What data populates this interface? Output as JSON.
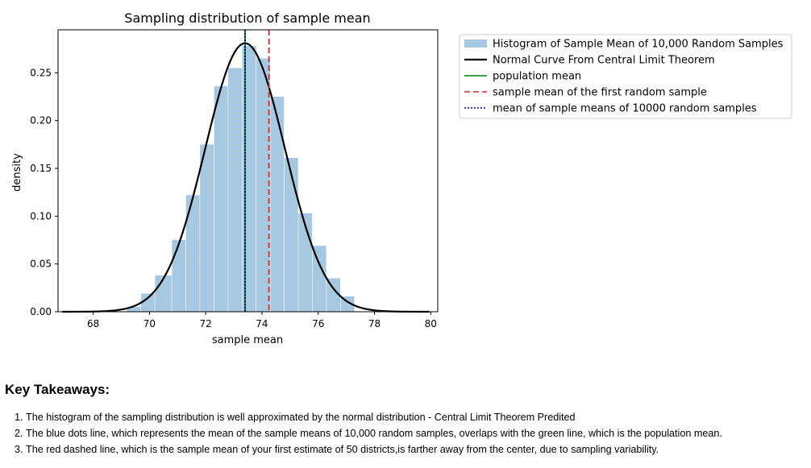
{
  "chart_data": {
    "type": "bar",
    "title": "Sampling distribution of sample mean",
    "xlabel": "sample mean",
    "ylabel": "density",
    "xlim": [
      66.75,
      80.25
    ],
    "ylim": [
      0,
      0.295
    ],
    "xticks": [
      68,
      70,
      72,
      74,
      76,
      78,
      80
    ],
    "yticks": [
      0.0,
      0.05,
      0.1,
      0.15,
      0.2,
      0.25
    ],
    "ytick_labels": [
      "0.00",
      "0.05",
      "0.10",
      "0.15",
      "0.20",
      "0.25"
    ],
    "grid": false,
    "legend_position": "outside-top-right",
    "histogram": {
      "name": "Histogram of Sample Mean of 10,000 Random Samples",
      "color": "#a6c8e0",
      "bin_edges": [
        69.2,
        69.7,
        70.2,
        70.8,
        71.3,
        71.8,
        72.3,
        72.8,
        73.3,
        73.8,
        74.3,
        74.8,
        75.3,
        75.8,
        76.3,
        76.8,
        77.3
      ],
      "density": [
        0.005,
        0.019,
        0.038,
        0.075,
        0.122,
        0.175,
        0.236,
        0.255,
        0.278,
        0.265,
        0.225,
        0.161,
        0.103,
        0.069,
        0.035,
        0.016
      ]
    },
    "normal_curve": {
      "name": "Normal Curve From Central Limit Theorem",
      "color": "#000000",
      "mean": 73.4,
      "sd": 1.42,
      "x_range": [
        66.9,
        79.95
      ]
    },
    "vlines": [
      {
        "name": "population mean",
        "x": 73.4,
        "color": "#008000",
        "style": "solid"
      },
      {
        "name": "sample mean of the first random sample",
        "x": 74.25,
        "color": "#d62728",
        "style": "dashed"
      },
      {
        "name": "mean of sample means of 10000 random samples",
        "x": 73.4,
        "color": "#0000cc",
        "style": "dotted"
      }
    ]
  },
  "takeaways": {
    "heading": "Key Takeaways:",
    "items": [
      "The histogram of the sampling distribution is well approximated by the normal distribution - Central Limit Theorem Predited",
      "The blue dots line, which represents the mean of the sample means of 10,000 random samples, overlaps with the green line, which is the population mean.",
      "The red dashed line, which is the sample mean of your first estimate of 50 districts,is farther away from the center, due to sampling variability."
    ]
  }
}
